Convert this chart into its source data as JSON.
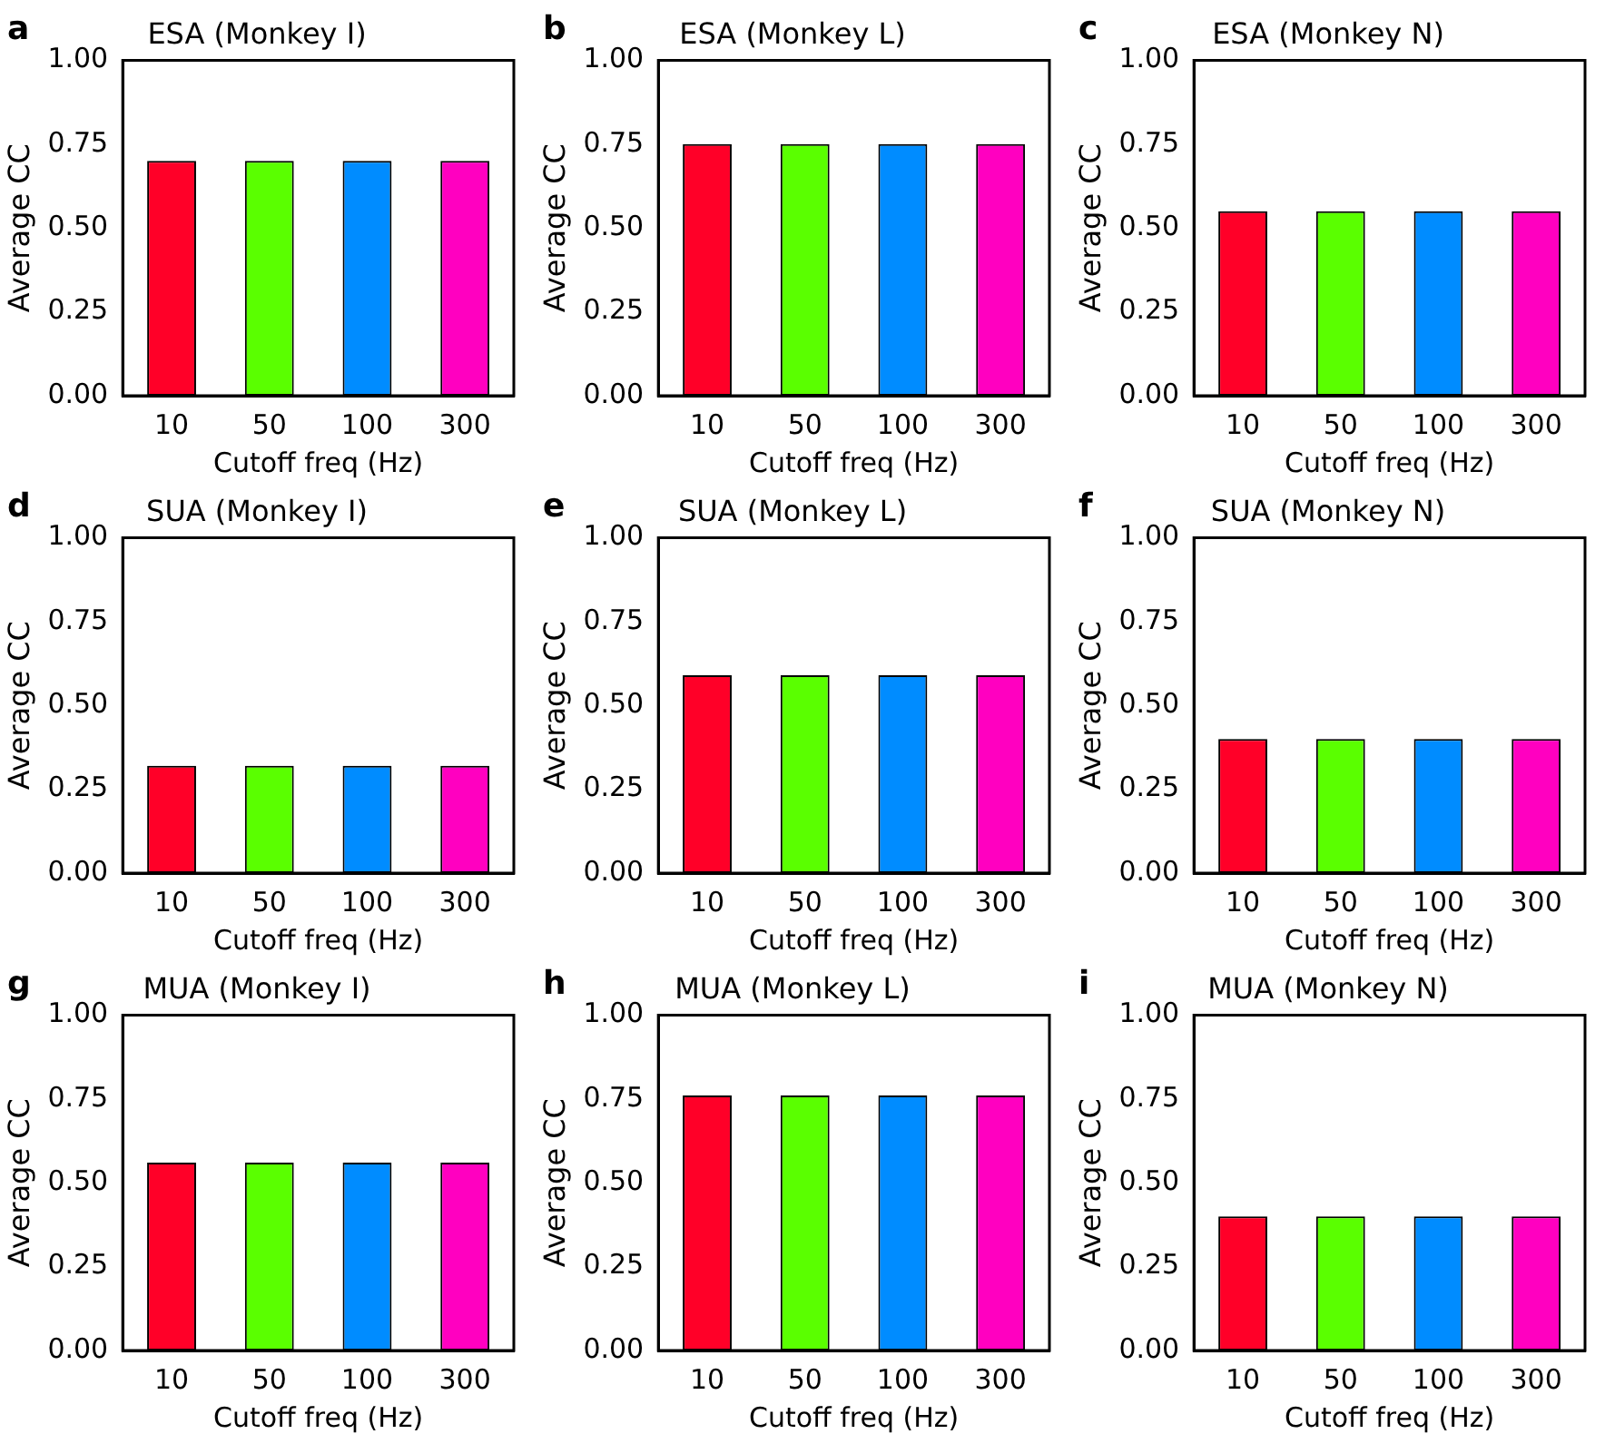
{
  "chart_data": [
    {
      "type": "bar",
      "title": "ESA (Monkey I)",
      "annotations": [
        "a"
      ],
      "xlabel": "Cutoff freq (Hz)",
      "ylabel": "Average CC",
      "categories": [
        "10",
        "50",
        "100",
        "300"
      ],
      "values": [
        0.7,
        0.7,
        0.7,
        0.7
      ],
      "colors": [
        "#ff0028",
        "#5aff00",
        "#008cff",
        "#ff00c0"
      ],
      "ylim": [
        0,
        1
      ],
      "yticks": [
        {
          "value": 0,
          "label": "0.00"
        },
        {
          "value": 0.25,
          "label": "0.25"
        },
        {
          "value": 0.5,
          "label": "0.50"
        },
        {
          "value": 0.75,
          "label": "0.75"
        },
        {
          "value": 1,
          "label": "1.00"
        }
      ]
    },
    {
      "type": "bar",
      "title": "ESA (Monkey L)",
      "annotations": [
        "b"
      ],
      "xlabel": "Cutoff freq (Hz)",
      "ylabel": "Average CC",
      "categories": [
        "10",
        "50",
        "100",
        "300"
      ],
      "values": [
        0.75,
        0.75,
        0.75,
        0.75
      ],
      "colors": [
        "#ff0028",
        "#5aff00",
        "#008cff",
        "#ff00c0"
      ],
      "ylim": [
        0,
        1
      ],
      "yticks": [
        {
          "value": 0,
          "label": "0.00"
        },
        {
          "value": 0.25,
          "label": "0.25"
        },
        {
          "value": 0.5,
          "label": "0.50"
        },
        {
          "value": 0.75,
          "label": "0.75"
        },
        {
          "value": 1,
          "label": "1.00"
        }
      ]
    },
    {
      "type": "bar",
      "title": "ESA (Monkey N)",
      "annotations": [
        "c"
      ],
      "xlabel": "Cutoff freq (Hz)",
      "ylabel": "Average CC",
      "categories": [
        "10",
        "50",
        "100",
        "300"
      ],
      "values": [
        0.55,
        0.55,
        0.55,
        0.55
      ],
      "colors": [
        "#ff0028",
        "#5aff00",
        "#008cff",
        "#ff00c0"
      ],
      "ylim": [
        0,
        1
      ],
      "yticks": [
        {
          "value": 0,
          "label": "0.00"
        },
        {
          "value": 0.25,
          "label": "0.25"
        },
        {
          "value": 0.5,
          "label": "0.50"
        },
        {
          "value": 0.75,
          "label": "0.75"
        },
        {
          "value": 1,
          "label": "1.00"
        }
      ]
    },
    {
      "type": "bar",
      "title": "SUA (Monkey I)",
      "annotations": [
        "d"
      ],
      "xlabel": "Cutoff freq (Hz)",
      "ylabel": "Average CC",
      "categories": [
        "10",
        "50",
        "100",
        "300"
      ],
      "values": [
        0.32,
        0.32,
        0.32,
        0.32
      ],
      "colors": [
        "#ff0028",
        "#5aff00",
        "#008cff",
        "#ff00c0"
      ],
      "ylim": [
        0,
        1
      ],
      "yticks": [
        {
          "value": 0,
          "label": "0.00"
        },
        {
          "value": 0.25,
          "label": "0.25"
        },
        {
          "value": 0.5,
          "label": "0.50"
        },
        {
          "value": 0.75,
          "label": "0.75"
        },
        {
          "value": 1,
          "label": "1.00"
        }
      ]
    },
    {
      "type": "bar",
      "title": "SUA (Monkey L)",
      "annotations": [
        "e"
      ],
      "xlabel": "Cutoff freq (Hz)",
      "ylabel": "Average CC",
      "categories": [
        "10",
        "50",
        "100",
        "300"
      ],
      "values": [
        0.59,
        0.59,
        0.59,
        0.59
      ],
      "colors": [
        "#ff0028",
        "#5aff00",
        "#008cff",
        "#ff00c0"
      ],
      "ylim": [
        0,
        1
      ],
      "yticks": [
        {
          "value": 0,
          "label": "0.00"
        },
        {
          "value": 0.25,
          "label": "0.25"
        },
        {
          "value": 0.5,
          "label": "0.50"
        },
        {
          "value": 0.75,
          "label": "0.75"
        },
        {
          "value": 1,
          "label": "1.00"
        }
      ]
    },
    {
      "type": "bar",
      "title": "SUA (Monkey N)",
      "annotations": [
        "f"
      ],
      "xlabel": "Cutoff freq (Hz)",
      "ylabel": "Average CC",
      "categories": [
        "10",
        "50",
        "100",
        "300"
      ],
      "values": [
        0.4,
        0.4,
        0.4,
        0.4
      ],
      "colors": [
        "#ff0028",
        "#5aff00",
        "#008cff",
        "#ff00c0"
      ],
      "ylim": [
        0,
        1
      ],
      "yticks": [
        {
          "value": 0,
          "label": "0.00"
        },
        {
          "value": 0.25,
          "label": "0.25"
        },
        {
          "value": 0.5,
          "label": "0.50"
        },
        {
          "value": 0.75,
          "label": "0.75"
        },
        {
          "value": 1,
          "label": "1.00"
        }
      ]
    },
    {
      "type": "bar",
      "title": "MUA (Monkey I)",
      "annotations": [
        "g"
      ],
      "xlabel": "Cutoff freq (Hz)",
      "ylabel": "Average CC",
      "categories": [
        "10",
        "50",
        "100",
        "300"
      ],
      "values": [
        0.56,
        0.56,
        0.56,
        0.56
      ],
      "colors": [
        "#ff0028",
        "#5aff00",
        "#008cff",
        "#ff00c0"
      ],
      "ylim": [
        0,
        1
      ],
      "yticks": [
        {
          "value": 0,
          "label": "0.00"
        },
        {
          "value": 0.25,
          "label": "0.25"
        },
        {
          "value": 0.5,
          "label": "0.50"
        },
        {
          "value": 0.75,
          "label": "0.75"
        },
        {
          "value": 1,
          "label": "1.00"
        }
      ]
    },
    {
      "type": "bar",
      "title": "MUA (Monkey L)",
      "annotations": [
        "h"
      ],
      "xlabel": "Cutoff freq (Hz)",
      "ylabel": "Average CC",
      "categories": [
        "10",
        "50",
        "100",
        "300"
      ],
      "values": [
        0.76,
        0.76,
        0.76,
        0.76
      ],
      "colors": [
        "#ff0028",
        "#5aff00",
        "#008cff",
        "#ff00c0"
      ],
      "ylim": [
        0,
        1
      ],
      "yticks": [
        {
          "value": 0,
          "label": "0.00"
        },
        {
          "value": 0.25,
          "label": "0.25"
        },
        {
          "value": 0.5,
          "label": "0.50"
        },
        {
          "value": 0.75,
          "label": "0.75"
        },
        {
          "value": 1,
          "label": "1.00"
        }
      ]
    },
    {
      "type": "bar",
      "title": "MUA (Monkey N)",
      "annotations": [
        "i"
      ],
      "xlabel": "Cutoff freq (Hz)",
      "ylabel": "Average CC",
      "categories": [
        "10",
        "50",
        "100",
        "300"
      ],
      "values": [
        0.4,
        0.4,
        0.4,
        0.4
      ],
      "colors": [
        "#ff0028",
        "#5aff00",
        "#008cff",
        "#ff00c0"
      ],
      "ylim": [
        0,
        1
      ],
      "yticks": [
        {
          "value": 0,
          "label": "0.00"
        },
        {
          "value": 0.25,
          "label": "0.25"
        },
        {
          "value": 0.5,
          "label": "0.50"
        },
        {
          "value": 0.75,
          "label": "0.75"
        },
        {
          "value": 1,
          "label": "1.00"
        }
      ]
    }
  ]
}
